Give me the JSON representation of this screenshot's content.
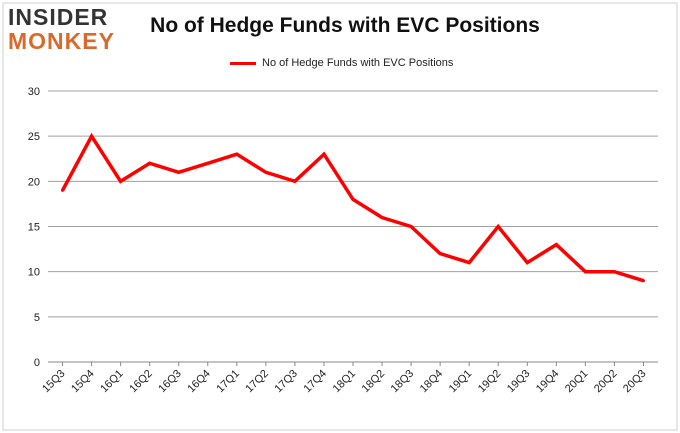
{
  "logo": {
    "line1": "INSIDER",
    "line2": "MONKEY"
  },
  "chart_data": {
    "type": "line",
    "title": "No of Hedge Funds with EVC Positions",
    "xlabel": "",
    "ylabel": "",
    "categories": [
      "15Q3",
      "15Q4",
      "16Q1",
      "16Q2",
      "16Q3",
      "16Q4",
      "17Q1",
      "17Q2",
      "17Q3",
      "17Q4",
      "18Q1",
      "18Q2",
      "18Q3",
      "18Q4",
      "19Q1",
      "19Q2",
      "19Q3",
      "19Q4",
      "20Q1",
      "20Q2",
      "20Q3"
    ],
    "series": [
      {
        "name": "No of Hedge Funds with EVC Positions",
        "values": [
          19,
          25,
          20,
          22,
          21,
          22,
          23,
          21,
          20,
          23,
          18,
          16,
          15,
          12,
          11,
          15,
          11,
          13,
          10,
          10,
          9
        ],
        "color": "#ff0000"
      }
    ],
    "ylim": [
      0,
      30
    ],
    "yticks": [
      0,
      5,
      10,
      15,
      20,
      25,
      30
    ],
    "grid": true,
    "legend_position": "top-center",
    "colors": {
      "line": "#ff0000",
      "grid": "#a0a0a0",
      "logo_accent": "#d86a2b"
    }
  }
}
